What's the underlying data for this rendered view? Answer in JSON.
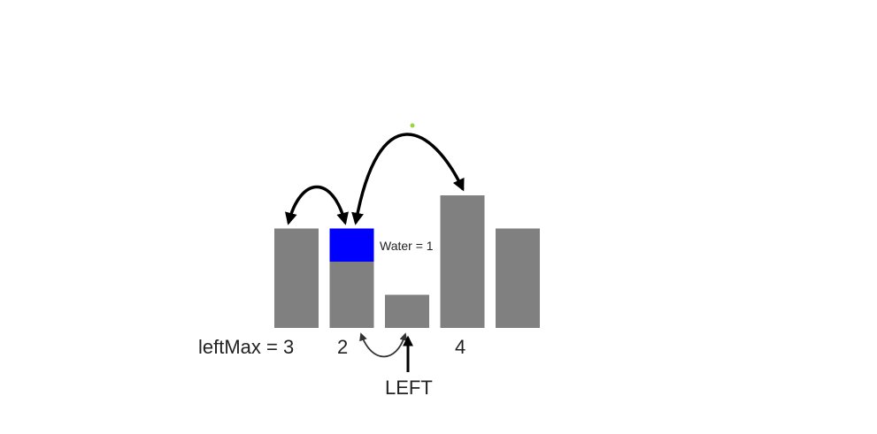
{
  "colors": {
    "bar": "#808080",
    "water": "#0000ff",
    "arrow": "#000000",
    "arrow_thin": "#333333",
    "dot": "#9bd53a",
    "text": "#222222"
  },
  "bars": [
    {
      "height": 3,
      "water": 0
    },
    {
      "height": 2,
      "water": 1
    },
    {
      "height": 1,
      "water": 0
    },
    {
      "height": 4,
      "water": 0
    },
    {
      "height": 3,
      "water": 0
    }
  ],
  "labels": {
    "left_max": "leftMax = 3",
    "bar_two_value": "2",
    "bar_four_value": "4",
    "water": "Water = 1",
    "pointer": "LEFT"
  }
}
